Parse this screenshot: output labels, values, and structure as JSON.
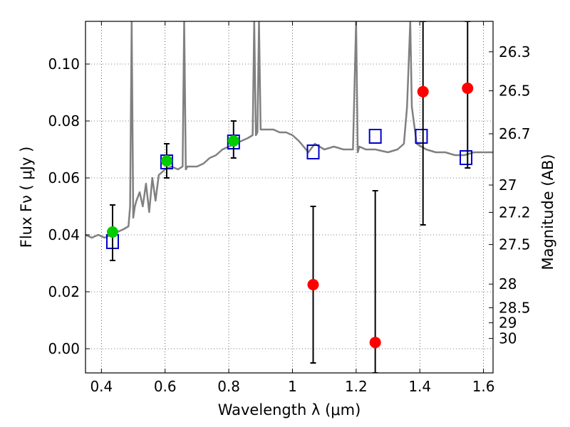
{
  "chart_data": {
    "type": "scatter",
    "title": "",
    "xlabel": "Wavelength  λ (μm)",
    "ylabel": "Flux  Fν  ( μJy )",
    "ylabel_right": "Magnitude (AB)",
    "xlim": [
      0.35,
      1.63
    ],
    "ylim": [
      -0.0085,
      0.115
    ],
    "grid": true,
    "x_ticks": [
      0.4,
      0.6,
      0.8,
      1.0,
      1.2,
      1.4,
      1.6
    ],
    "x_tick_labels": [
      "0.4",
      "0.6",
      "0.8",
      "1",
      "1.2",
      "1.4",
      "1.6"
    ],
    "y_ticks": [
      0.0,
      0.02,
      0.04,
      0.06,
      0.08,
      0.1
    ],
    "y_tick_labels": [
      "0.00",
      "0.02",
      "0.04",
      "0.06",
      "0.08",
      "0.10"
    ],
    "right_ticks": [
      {
        "label": "26.3",
        "flux": 0.1043
      },
      {
        "label": "26.5",
        "flux": 0.0906
      },
      {
        "label": "26.7",
        "flux": 0.0755
      },
      {
        "label": "27",
        "flux": 0.0575
      },
      {
        "label": "27.2",
        "flux": 0.0479
      },
      {
        "label": "27.5",
        "flux": 0.0366
      },
      {
        "label": "28",
        "flux": 0.0227
      },
      {
        "label": "28.5",
        "flux": 0.0144
      },
      {
        "label": "29",
        "flux": 0.0091
      },
      {
        "label": "30",
        "flux": 0.0036
      }
    ],
    "series": [
      {
        "type": "line",
        "color": "#808080",
        "x": [
          0.35,
          0.37,
          0.39,
          0.41,
          0.43,
          0.45,
          0.47,
          0.485,
          0.49,
          0.495,
          0.5,
          0.505,
          0.51,
          0.52,
          0.53,
          0.54,
          0.55,
          0.56,
          0.57,
          0.58,
          0.59,
          0.6,
          0.62,
          0.64,
          0.655,
          0.66,
          0.665,
          0.67,
          0.68,
          0.7,
          0.72,
          0.74,
          0.76,
          0.78,
          0.8,
          0.82,
          0.84,
          0.86,
          0.875,
          0.88,
          0.885,
          0.89,
          0.895,
          0.9,
          0.92,
          0.94,
          0.96,
          0.98,
          1.0,
          1.02,
          1.05,
          1.07,
          1.1,
          1.13,
          1.16,
          1.19,
          1.2,
          1.205,
          1.21,
          1.23,
          1.26,
          1.3,
          1.33,
          1.35,
          1.36,
          1.37,
          1.375,
          1.39,
          1.42,
          1.45,
          1.48,
          1.51,
          1.54,
          1.57,
          1.6,
          1.63
        ],
        "y": [
          0.04,
          0.039,
          0.04,
          0.039,
          0.04,
          0.041,
          0.042,
          0.043,
          0.05,
          0.115,
          0.046,
          0.05,
          0.052,
          0.055,
          0.05,
          0.058,
          0.048,
          0.06,
          0.052,
          0.061,
          0.062,
          0.063,
          0.064,
          0.063,
          0.064,
          0.115,
          0.063,
          0.064,
          0.064,
          0.064,
          0.065,
          0.067,
          0.068,
          0.07,
          0.071,
          0.072,
          0.073,
          0.074,
          0.075,
          0.115,
          0.075,
          0.076,
          0.115,
          0.077,
          0.077,
          0.077,
          0.076,
          0.076,
          0.075,
          0.073,
          0.069,
          0.072,
          0.07,
          0.071,
          0.07,
          0.07,
          0.115,
          0.069,
          0.071,
          0.07,
          0.07,
          0.069,
          0.07,
          0.072,
          0.085,
          0.115,
          0.085,
          0.072,
          0.07,
          0.069,
          0.069,
          0.068,
          0.068,
          0.069,
          0.069,
          0.069
        ]
      },
      {
        "type": "scatter",
        "marker": "open-square",
        "color": "#0000cc",
        "x": [
          0.435,
          0.605,
          0.815,
          1.065,
          1.26,
          1.405,
          1.545
        ],
        "y": [
          0.0375,
          0.0655,
          0.0725,
          0.069,
          0.0745,
          0.0745,
          0.067
        ]
      },
      {
        "type": "scatter",
        "marker": "filled-circle",
        "color": "#00cc00",
        "x": [
          0.435,
          0.605,
          0.815
        ],
        "y": [
          0.041,
          0.066,
          0.073
        ],
        "yerr_low": [
          0.031,
          0.06,
          0.067
        ],
        "yerr_high": [
          0.0505,
          0.072,
          0.08
        ]
      },
      {
        "type": "scatter",
        "marker": "filled-circle",
        "color": "#ff0000",
        "x": [
          1.065,
          1.26,
          1.41,
          1.55
        ],
        "y": [
          0.0225,
          0.0022,
          0.0903,
          0.0915
        ],
        "yerr_low": [
          -0.005,
          -0.0085,
          0.0435,
          0.0635
        ],
        "yerr_high": [
          0.05,
          0.0555,
          0.115,
          0.115
        ]
      }
    ]
  }
}
